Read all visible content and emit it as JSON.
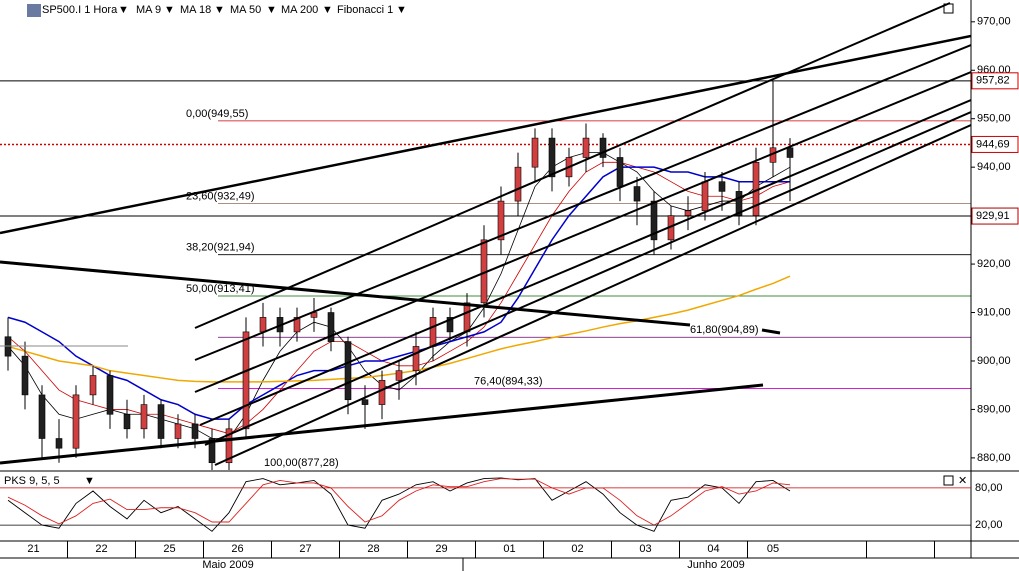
{
  "chart_data": {
    "type": "candlestick",
    "title": "SP500.I 1 Hora",
    "categories": [
      "21",
      null,
      null,
      null,
      "22",
      null,
      null,
      null,
      "25",
      null,
      null,
      null,
      "26",
      null,
      null,
      null,
      "27",
      null,
      null,
      null,
      "28",
      null,
      null,
      null,
      "29",
      null,
      null,
      null,
      "01",
      null,
      null,
      null,
      "02",
      null,
      null,
      null,
      "03",
      null,
      null,
      null,
      "04",
      null,
      null,
      null,
      "05",
      null,
      null
    ],
    "months": [
      "Maio 2009",
      "Junho 2009"
    ],
    "open": [
      905,
      901,
      893,
      884,
      882,
      893,
      897,
      889,
      886,
      891,
      884,
      887,
      884,
      879,
      886,
      906,
      909,
      906,
      909,
      910,
      904,
      892,
      891,
      896,
      898,
      903,
      909,
      906,
      912,
      925,
      933,
      940,
      946,
      938,
      942,
      946,
      942,
      936,
      933,
      925,
      930,
      931,
      937,
      935,
      930,
      941,
      944
    ],
    "high": [
      909,
      904,
      895,
      888,
      895,
      899,
      898,
      892,
      893,
      892,
      889,
      889,
      886,
      888,
      909,
      912,
      911,
      911,
      913,
      911,
      905,
      895,
      898,
      900,
      906,
      911,
      911,
      914,
      928,
      936,
      943,
      948,
      948,
      944,
      949,
      947,
      944,
      938,
      935,
      932,
      934,
      939,
      939,
      937,
      944,
      957.82,
      946
    ],
    "low": [
      898,
      890,
      880,
      879,
      880,
      891,
      886,
      884,
      884,
      882,
      882,
      882,
      877,
      877,
      884,
      903,
      903,
      904,
      906,
      902,
      889,
      886,
      888,
      892,
      895,
      900,
      904,
      903,
      909,
      922,
      930,
      937,
      935,
      936,
      939,
      940,
      933,
      928,
      922,
      923,
      927,
      929,
      931,
      928,
      928,
      938,
      933
    ],
    "close": [
      901,
      893,
      884,
      882,
      893,
      897,
      889,
      886,
      891,
      884,
      887,
      884,
      879,
      886,
      906,
      909,
      906,
      909,
      910,
      904,
      892,
      891,
      896,
      898,
      903,
      909,
      906,
      912,
      925,
      933,
      940,
      946,
      938,
      942,
      946,
      942,
      936,
      933,
      925,
      930,
      931,
      937,
      935,
      930,
      941,
      944,
      942
    ],
    "up_color": "#d04040",
    "down_color": "#202020",
    "series": [
      {
        "name": "MA 9",
        "color": "#000000",
        "values": [
          903,
          899,
          893,
          889,
          888,
          889,
          890,
          889,
          889,
          888,
          887,
          886,
          884,
          884,
          889,
          896,
          902,
          906,
          908,
          907,
          903,
          898,
          895,
          894,
          897,
          901,
          904,
          906,
          911,
          918,
          927,
          936,
          940,
          942,
          943,
          943,
          941,
          939,
          935,
          932,
          931,
          932,
          933,
          933,
          936,
          938,
          940
        ]
      },
      {
        "name": "MA 18",
        "color": "#cc0000",
        "values": [
          905,
          902,
          898,
          894,
          892,
          891,
          890,
          890,
          889,
          889,
          888,
          887,
          886,
          885,
          887,
          890,
          894,
          898,
          902,
          904,
          904,
          902,
          900,
          899,
          899,
          900,
          902,
          904,
          907,
          912,
          918,
          924,
          930,
          935,
          939,
          941,
          941,
          940,
          939,
          937,
          935,
          934,
          934,
          933,
          934,
          936,
          937
        ]
      },
      {
        "name": "MA 50",
        "color": "#0000cc",
        "values": [
          909,
          908,
          906,
          904,
          901,
          899,
          897,
          896,
          894,
          892,
          891,
          889,
          888,
          888,
          891,
          893,
          895,
          897,
          898,
          898,
          899,
          900,
          900,
          901,
          902,
          903,
          904,
          905,
          906,
          908,
          913,
          919,
          925,
          930,
          934,
          938,
          940,
          940,
          940,
          939,
          939,
          938,
          938,
          937,
          937,
          937,
          937
        ]
      },
      {
        "name": "MA 200",
        "color": "#f0a800",
        "values": [
          903,
          902,
          901,
          900,
          899.5,
          899,
          898,
          897.5,
          897,
          896.5,
          896,
          895.8,
          895.7,
          895.7,
          895.7,
          895.7,
          895.8,
          895.9,
          896,
          896.2,
          896.4,
          896.6,
          897,
          897.5,
          898,
          898.7,
          899.5,
          900.5,
          901.5,
          902.5,
          903.3,
          904,
          904.8,
          905.5,
          906.2,
          907,
          907.7,
          908.3,
          909,
          909.7,
          910.5,
          911.5,
          912.5,
          913.5,
          914.8,
          916,
          917.5
        ]
      }
    ],
    "ylim": [
      877.5,
      974.5
    ],
    "yticks": [
      {
        "value": 880,
        "label": "880,00"
      },
      {
        "value": 890,
        "label": "890,00"
      },
      {
        "value": 900,
        "label": "900,00"
      },
      {
        "value": 910,
        "label": "910,00"
      },
      {
        "value": 920,
        "label": "920,00"
      },
      {
        "value": 930,
        "label": "930,00"
      },
      {
        "value": 940,
        "label": "940,00"
      },
      {
        "value": 950,
        "label": "950,00"
      },
      {
        "value": 960,
        "label": "960,00"
      },
      {
        "value": 970,
        "label": "970,00"
      }
    ],
    "fibonacci": {
      "name": "Fibonacci 1",
      "levels": [
        {
          "value": 949.55,
          "label": "0,00(949,55)",
          "color": "#cc0000"
        },
        {
          "value": 932.49,
          "label": "23,60(932,49)",
          "color": "#a08070"
        },
        {
          "value": 921.94,
          "label": "38,20(921,94)",
          "color": "#000000"
        },
        {
          "value": 913.41,
          "label": "50,00(913,41)",
          "color": "#006600"
        },
        {
          "value": 904.89,
          "label": "61,80(904,89)",
          "color": "#660066"
        },
        {
          "value": 894.33,
          "label": "76,40(894,33)",
          "color": "#cc00cc"
        },
        {
          "value": 877.28,
          "label": "100,00(877,28)",
          "color": "#0000aa"
        }
      ]
    },
    "price_markers": [
      {
        "value": 957.82,
        "label": "957,82",
        "color": "#cc0000",
        "line": "#000000"
      },
      {
        "value": 944.69,
        "label": "944,69",
        "color": "#cc0000",
        "line": "#cc0000"
      },
      {
        "value": 929.91,
        "label": "929,91",
        "color": "#aa0000",
        "line": "#000000"
      }
    ],
    "oscillator": {
      "name": "PKS 9, 5, 5",
      "series": [
        {
          "color": "#000000",
          "values": [
            60,
            40,
            20,
            15,
            55,
            75,
            50,
            30,
            60,
            40,
            50,
            30,
            10,
            40,
            90,
            95,
            85,
            88,
            92,
            70,
            20,
            15,
            60,
            70,
            85,
            90,
            75,
            88,
            95,
            96,
            93,
            95,
            60,
            75,
            90,
            70,
            40,
            20,
            10,
            60,
            65,
            85,
            80,
            55,
            90,
            92,
            75
          ]
        },
        {
          "color": "#dd2222",
          "values": [
            65,
            52,
            35,
            22,
            35,
            55,
            62,
            45,
            45,
            48,
            48,
            40,
            25,
            25,
            55,
            85,
            92,
            88,
            88,
            80,
            50,
            25,
            35,
            60,
            75,
            85,
            82,
            82,
            90,
            95,
            94,
            94,
            80,
            70,
            80,
            80,
            60,
            35,
            20,
            35,
            55,
            75,
            82,
            70,
            75,
            88,
            85
          ]
        }
      ],
      "ylim": [
        -4,
        104
      ],
      "yticks": [
        {
          "value": 80,
          "label": "80,00"
        },
        {
          "value": 20,
          "label": "20,00"
        }
      ]
    }
  }
}
